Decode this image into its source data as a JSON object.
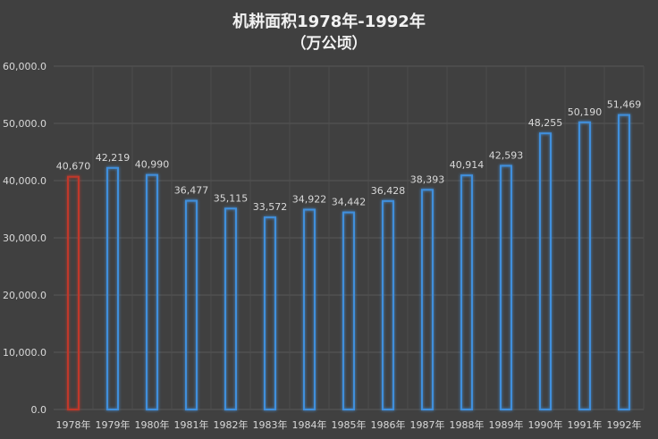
{
  "chart_data": {
    "type": "bar",
    "title": "机耕面积1978年-1992年",
    "subtitle": "（万公顷）",
    "categories": [
      "1978年",
      "1979年",
      "1980年",
      "1981年",
      "1982年",
      "1983年",
      "1984年",
      "1985年",
      "1986年",
      "1987年",
      "1988年",
      "1989年",
      "1990年",
      "1991年",
      "1992年"
    ],
    "values": [
      40670,
      42219,
      40990,
      36477,
      35115,
      33572,
      34922,
      34442,
      36428,
      38393,
      40914,
      42593,
      48255,
      50190,
      51469
    ],
    "value_labels": [
      "40,670",
      "42,219",
      "40,990",
      "36,477",
      "35,115",
      "33,572",
      "34,922",
      "34,442",
      "36,428",
      "38,393",
      "40,914",
      "42,593",
      "48,255",
      "50,190",
      "51,469"
    ],
    "y_ticks": [
      0,
      10000,
      20000,
      30000,
      40000,
      50000,
      60000
    ],
    "y_tick_labels": [
      "0.0",
      "10,000.0",
      "20,000.0",
      "30,000.0",
      "40,000.0",
      "50,000.0",
      "60,000.0"
    ],
    "ylim": [
      0,
      60000
    ],
    "grid": true,
    "highlight_index": 0,
    "colors": {
      "background": "#404040",
      "grid": "#595959",
      "bar_outline": "#3f8fdc",
      "bar_glow": "#5aa8f0",
      "highlight_outline": "#c0392b",
      "text": "#d9d9d9",
      "title": "#f2f2f2"
    }
  }
}
